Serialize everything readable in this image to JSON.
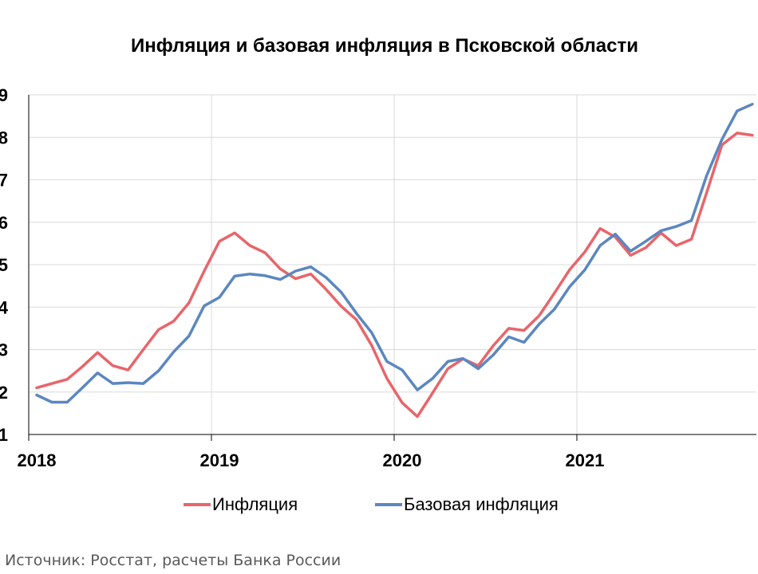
{
  "chart_data": {
    "type": "line",
    "title": "Инфляция и базовая инфляция в Псковской области",
    "xlabel": "",
    "ylabel": "",
    "ylim": [
      1,
      9
    ],
    "yticks": [
      "1",
      "2",
      "3",
      "4",
      "5",
      "6",
      "7",
      "8",
      "9"
    ],
    "xticks": [
      "2018",
      "2019",
      "2020",
      "2021"
    ],
    "x_start": "2018-01",
    "grid": true,
    "legend_position": "bottom",
    "series": [
      {
        "name": "Инфляция",
        "color": "#E8656A",
        "values": [
          2.1,
          2.2,
          2.3,
          2.6,
          2.93,
          2.62,
          2.52,
          3.0,
          3.47,
          3.67,
          4.1,
          4.85,
          5.55,
          5.75,
          5.45,
          5.28,
          4.9,
          4.67,
          4.78,
          4.42,
          4.02,
          3.7,
          3.1,
          2.32,
          1.75,
          1.42,
          1.98,
          2.55,
          2.78,
          2.62,
          3.1,
          3.5,
          3.45,
          3.8,
          4.33,
          4.88,
          5.3,
          5.85,
          5.65,
          5.22,
          5.4,
          5.75,
          5.45,
          5.6,
          6.7,
          7.82,
          8.1,
          8.05
        ]
      },
      {
        "name": "Базовая инфляция",
        "color": "#5B87C0",
        "values": [
          1.93,
          1.76,
          1.76,
          2.1,
          2.45,
          2.2,
          2.22,
          2.2,
          2.5,
          2.95,
          3.32,
          4.03,
          4.23,
          4.73,
          4.78,
          4.74,
          4.65,
          4.85,
          4.95,
          4.7,
          4.35,
          3.85,
          3.4,
          2.72,
          2.52,
          2.05,
          2.32,
          2.72,
          2.79,
          2.55,
          2.88,
          3.3,
          3.17,
          3.6,
          3.95,
          4.48,
          4.88,
          5.45,
          5.72,
          5.32,
          5.55,
          5.8,
          5.9,
          6.04,
          7.1,
          7.95,
          8.62,
          8.78
        ]
      }
    ]
  },
  "source_note": "Источник: Росстат, расчеты Банка России"
}
